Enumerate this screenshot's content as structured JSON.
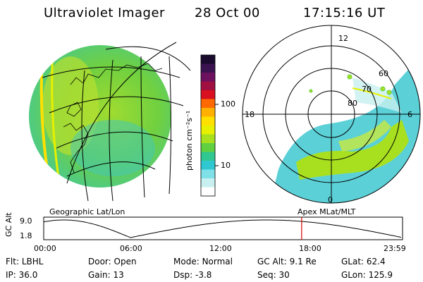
{
  "header": {
    "instrument": "Ultraviolet Imager",
    "date": "28 Oct 00",
    "time": "17:15:16 UT"
  },
  "colorbar": {
    "unit_label": "photon cm⁻²s⁻¹",
    "ticks": [
      "100",
      "10"
    ],
    "colors": [
      "#1a0a2e",
      "#3a1250",
      "#6e1060",
      "#a01040",
      "#d81020",
      "#ff6a00",
      "#ffb000",
      "#ffe000",
      "#e6f000",
      "#a8e020",
      "#60d040",
      "#30c890",
      "#30c8d0",
      "#80e0e8",
      "#c8f0f0",
      "#ffffff"
    ]
  },
  "left_panel": {
    "caption": "Geographic Lat/Lon"
  },
  "right_panel": {
    "caption": "Apex MLat/MLT",
    "mlt_labels": [
      "12",
      "18",
      "6",
      "0"
    ],
    "lat_labels": [
      "60",
      "70",
      "80"
    ]
  },
  "altitude_plot": {
    "ylabel": "GC Alt",
    "ytick_top": "9.0",
    "ytick_bottom": "1.8",
    "xticks": [
      "00:00",
      "06:00",
      "12:00",
      "18:00",
      "23:59"
    ],
    "marker_hour": 17.25,
    "marker_color": "#e00000"
  },
  "footer": {
    "row1": [
      {
        "label": "Flt:",
        "value": "LBHL"
      },
      {
        "label": "Door:",
        "value": "Open"
      },
      {
        "label": "Mode:",
        "value": "Normal"
      },
      {
        "label": "GC Alt:",
        "value": "9.1 Re"
      },
      {
        "label": "GLat:",
        "value": "62.4"
      }
    ],
    "row2": [
      {
        "label": "IP:",
        "value": "36.0"
      },
      {
        "label": "Gain:",
        "value": "13"
      },
      {
        "label": "Dsp:",
        "value": "-3.8"
      },
      {
        "label": "Seq:",
        "value": "30"
      },
      {
        "label": "GLon:",
        "value": "125.9"
      }
    ]
  }
}
